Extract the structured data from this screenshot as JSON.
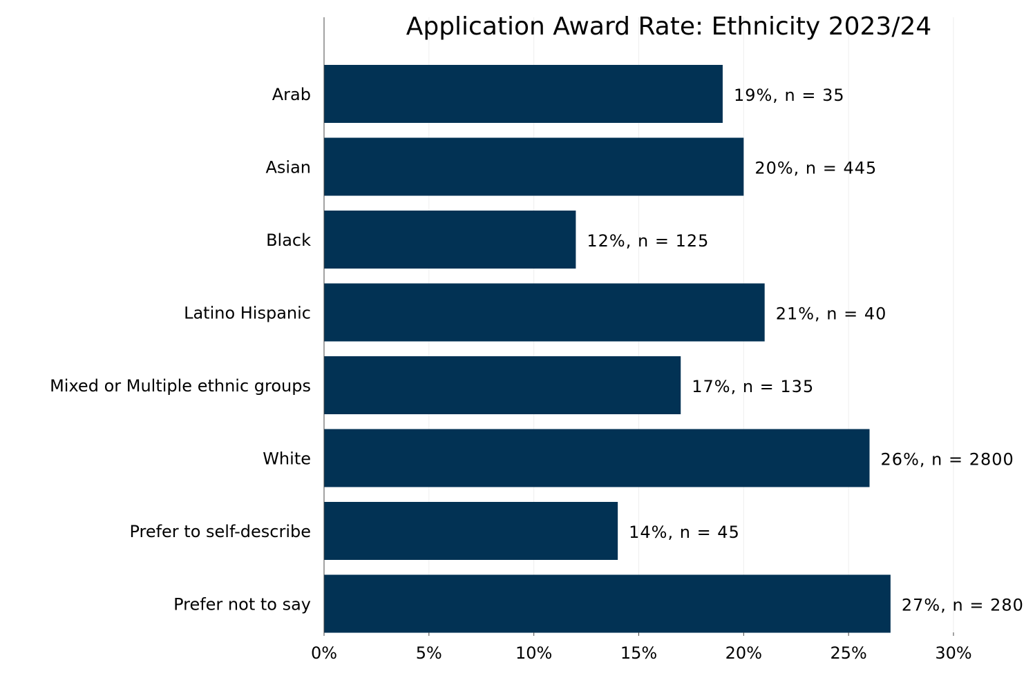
{
  "chart_data": {
    "type": "bar",
    "orientation": "horizontal",
    "title": "Application Award Rate: Ethnicity 2023/24",
    "xlabel": "",
    "ylabel": "",
    "xlim": [
      0,
      30
    ],
    "x_ticks": [
      "0%",
      "5%",
      "10%",
      "15%",
      "20%",
      "25%",
      "30%"
    ],
    "x_tick_values": [
      0,
      5,
      10,
      15,
      20,
      25,
      30
    ],
    "grid": true,
    "bar_color": "#023254",
    "categories": [
      "Arab",
      "Asian",
      "Black",
      "Latino Hispanic",
      "Mixed or Multiple ethnic groups",
      "White",
      "Prefer to self-describe",
      "Prefer not to say"
    ],
    "values": [
      19,
      20,
      12,
      21,
      17,
      26,
      14,
      27
    ],
    "n": [
      35,
      445,
      125,
      40,
      135,
      2800,
      45,
      280
    ],
    "data_labels": [
      "19%, n = 35",
      "20%, n = 445",
      "12%, n = 125",
      "21%, n = 40",
      "17%, n = 135",
      "26%, n = 2800",
      "14%, n = 45",
      "27%, n = 280"
    ]
  }
}
